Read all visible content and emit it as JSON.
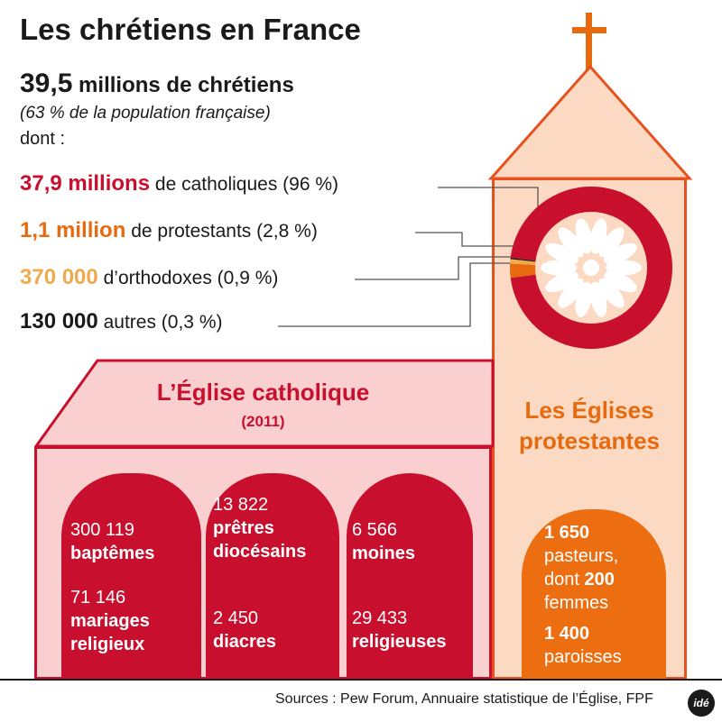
{
  "title": "Les chrétiens en France",
  "total": {
    "value": "39,5",
    "label": " millions de chrétiens",
    "population_note": "(63 % de la population française)",
    "dont": "dont :"
  },
  "stats": [
    {
      "value": "37,9 millions",
      "label": " de catholiques (96 %)",
      "color": "#c8102e"
    },
    {
      "value": "1,1 million",
      "label": " de protestants (2,8 %)",
      "color": "#e76a0e"
    },
    {
      "value": "370 000",
      "label": " d’orthodoxes (0,9 %)",
      "color": "#f0a94c"
    },
    {
      "value": "130 000",
      "label": " autres (0,3 %)",
      "color": "#1a1a1a"
    }
  ],
  "catholic": {
    "title": "L’Église catholique",
    "year": "(2011)",
    "t1a_num": "300 119",
    "t1a_lbl": "baptêmes",
    "t1b_num": "71 146",
    "t1b_lbl1": "mariages",
    "t1b_lbl2": "religieux",
    "t2a_num": "13 822",
    "t2a_lbl1": "prêtres",
    "t2a_lbl2": "diocésains",
    "t2b_num": "2 450",
    "t2b_lbl": "diacres",
    "t3a_num": "6 566",
    "t3a_lbl": "moines",
    "t3b_num": "29 433",
    "t3b_lbl": "religieuses"
  },
  "protestant": {
    "title1": "Les Églises",
    "title2": "protestantes",
    "pasteurs_num": "1 650",
    "pasteurs_lbl": "pasteurs,",
    "dont_word": "dont ",
    "femmes_num": "200",
    "femmes_lbl": "femmes",
    "paroisses_num": "1 400",
    "paroisses_lbl": "paroisses"
  },
  "sources": "Sources : Pew Forum, Annuaire statistique de l’Église, FPF",
  "logo": "idé",
  "chart_data": {
    "type": "pie",
    "title": "Les chrétiens en France",
    "total": "39,5 millions de chrétiens",
    "categories": [
      "catholiques",
      "protestants",
      "orthodoxes",
      "autres"
    ],
    "values": [
      96,
      2.8,
      0.9,
      0.3
    ],
    "counts": [
      "37,9 millions",
      "1,1 million",
      "370 000",
      "130 000"
    ],
    "colors": [
      "#c8102e",
      "#e76a0e",
      "#f0a94c",
      "#1a1a1a"
    ]
  }
}
